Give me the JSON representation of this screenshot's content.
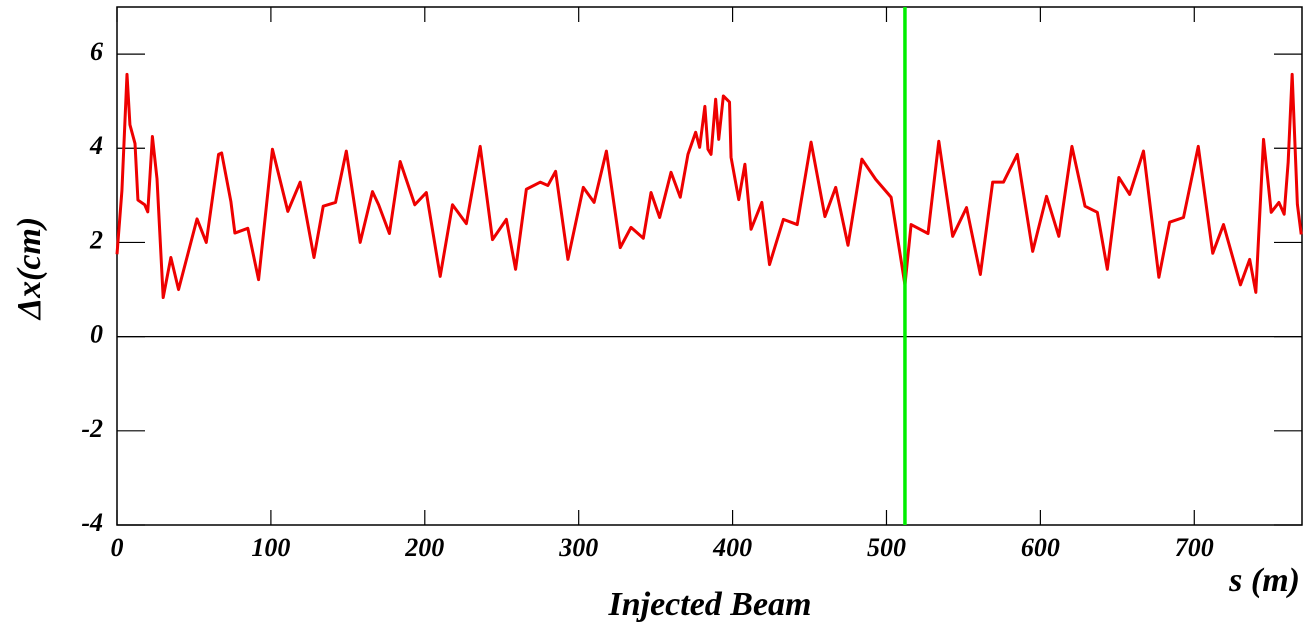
{
  "chart_data": {
    "type": "line",
    "title": "Injected Beam",
    "x_label": "s (m)",
    "y_label": "Δx(cm)",
    "xlim": [
      0,
      770
    ],
    "ylim": [
      -4,
      7
    ],
    "xticks": [
      0,
      100,
      200,
      300,
      400,
      500,
      600,
      700
    ],
    "yticks": [
      -4,
      -2,
      0,
      2,
      4,
      6
    ],
    "grid": false,
    "hline": {
      "y": 0,
      "color": "#000000"
    },
    "vline": {
      "x": 512,
      "color": "#00ee00"
    },
    "x": [
      0,
      3.2,
      6.5,
      8.4,
      11.7,
      13.6,
      18,
      20,
      23,
      26,
      30,
      35,
      40,
      52,
      58,
      66,
      68,
      74,
      76.6,
      85,
      92,
      101,
      111,
      119,
      128,
      134,
      142,
      149,
      158,
      166,
      170,
      177,
      184,
      193.5,
      201,
      210,
      218,
      227,
      236,
      244,
      253,
      259,
      266,
      275,
      280,
      285,
      293,
      303,
      310,
      318,
      327,
      334,
      342,
      347,
      352.6,
      360,
      366,
      371,
      376,
      378.6,
      382,
      384,
      386,
      389,
      391,
      394,
      398,
      399,
      404,
      408,
      412,
      419,
      424,
      433,
      442,
      451,
      460,
      467,
      475,
      484,
      493,
      503,
      512,
      516,
      527,
      534,
      543,
      552,
      561,
      569,
      576,
      585,
      595,
      604,
      612,
      620.5,
      629,
      637,
      643.5,
      651,
      658,
      667,
      677,
      684,
      693,
      702.6,
      712,
      719,
      730,
      736,
      740,
      745,
      750,
      755,
      758.4,
      761,
      763.6,
      767,
      769.5
    ],
    "series": [
      {
        "name": "Δx",
        "color": "#ee0000",
        "values": [
          1.75,
          3.1,
          5.57,
          4.5,
          4.1,
          2.9,
          2.8,
          2.65,
          4.25,
          3.35,
          0.83,
          1.68,
          1.0,
          2.5,
          2.0,
          3.87,
          3.9,
          2.87,
          2.2,
          2.3,
          1.21,
          3.98,
          2.66,
          3.28,
          1.68,
          2.77,
          2.85,
          3.94,
          2.0,
          3.08,
          2.8,
          2.19,
          3.72,
          2.8,
          3.06,
          1.28,
          2.8,
          2.4,
          4.04,
          2.06,
          2.49,
          1.43,
          3.13,
          3.28,
          3.21,
          3.51,
          1.64,
          3.17,
          2.85,
          3.94,
          1.89,
          2.32,
          2.09,
          3.06,
          2.53,
          3.49,
          2.96,
          3.87,
          4.34,
          4.02,
          4.89,
          3.98,
          3.87,
          5.04,
          4.19,
          5.11,
          4.98,
          3.81,
          2.91,
          3.66,
          2.28,
          2.85,
          1.53,
          2.49,
          2.38,
          4.13,
          2.55,
          3.17,
          1.94,
          3.77,
          3.34,
          2.96,
          1.1,
          2.38,
          2.19,
          4.15,
          2.13,
          2.74,
          1.32,
          3.28,
          3.28,
          3.87,
          1.81,
          2.98,
          2.13,
          4.04,
          2.77,
          2.64,
          1.43,
          3.38,
          3.02,
          3.94,
          1.26,
          2.43,
          2.53,
          4.04,
          1.77,
          2.38,
          1.1,
          1.64,
          0.94,
          4.19,
          2.64,
          2.85,
          2.6,
          3.7,
          5.57,
          2.81,
          2.17
        ]
      }
    ]
  }
}
